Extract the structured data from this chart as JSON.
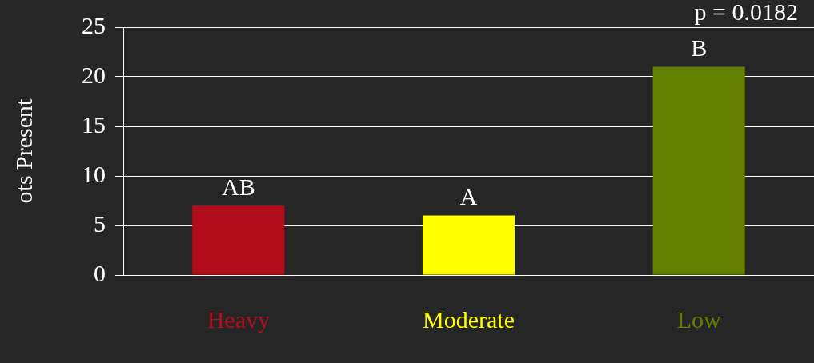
{
  "chart_data": {
    "type": "bar",
    "ylabel": "ots Present",
    "categories": [
      "Heavy",
      "Moderate",
      "Low"
    ],
    "values": [
      7,
      6,
      21
    ],
    "colors": [
      "#b30d1b",
      "#ffff00",
      "#638000"
    ],
    "value_labels": [
      "AB",
      "A",
      "B"
    ],
    "ylim": [
      0,
      25
    ],
    "yticks": [
      0,
      5,
      10,
      15,
      20,
      25
    ],
    "grid": "y",
    "annotations": [
      "p = 0.0182"
    ]
  }
}
